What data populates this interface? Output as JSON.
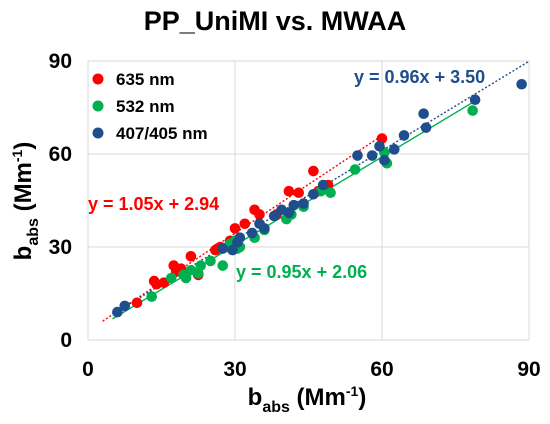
{
  "chart_data": {
    "type": "scatter",
    "title": "PP_UniMI vs. MWAA",
    "xlabel": {
      "main": "b",
      "sub": "abs",
      "unit_open": " (Mm",
      "unit_sup": "-1",
      "unit_close": ")"
    },
    "ylabel": {
      "main": "b",
      "sub": "abs",
      "unit_open": " (Mm",
      "unit_sup": "-1",
      "unit_close": ")"
    },
    "xlim": [
      0,
      90
    ],
    "ylim": [
      0,
      90
    ],
    "xticks": [
      0,
      30,
      60,
      90
    ],
    "yticks": [
      0,
      30,
      60,
      90
    ],
    "tick_labels_x": [
      "0",
      "30",
      "60",
      "90"
    ],
    "tick_labels_y": [
      "0",
      "30",
      "60",
      "90"
    ],
    "grid": true,
    "legend_position": "top-left",
    "series": [
      {
        "name": "635 nm",
        "color": "#ff0000",
        "points": [
          [
            10,
            12
          ],
          [
            13.5,
            19
          ],
          [
            14,
            18
          ],
          [
            15.5,
            18.5
          ],
          [
            17.5,
            24
          ],
          [
            18,
            22
          ],
          [
            19,
            23
          ],
          [
            21,
            27
          ],
          [
            22.5,
            21
          ],
          [
            26,
            29
          ],
          [
            26.5,
            29.5
          ],
          [
            27,
            30
          ],
          [
            29,
            32
          ],
          [
            30,
            36
          ],
          [
            32,
            37.5
          ],
          [
            34,
            42
          ],
          [
            35,
            40.5
          ],
          [
            38.5,
            40.5
          ],
          [
            41,
            48
          ],
          [
            43,
            47.5
          ],
          [
            46,
            54.5
          ],
          [
            47,
            48
          ],
          [
            49,
            50
          ],
          [
            60,
            65
          ]
        ],
        "fit": {
          "slope": 1.05,
          "intercept": 2.94,
          "xrange": [
            3,
            60
          ]
        },
        "equation": "y = 1.05x + 2.94"
      },
      {
        "name": "532 nm",
        "color": "#00b050",
        "points": [
          [
            13,
            14
          ],
          [
            17,
            20
          ],
          [
            19.5,
            21
          ],
          [
            20,
            20
          ],
          [
            21,
            22.5
          ],
          [
            22.5,
            21.5
          ],
          [
            23,
            24
          ],
          [
            25,
            25.5
          ],
          [
            27.5,
            24
          ],
          [
            28.5,
            30
          ],
          [
            29,
            31
          ],
          [
            30,
            32
          ],
          [
            30.5,
            29.5
          ],
          [
            31,
            30
          ],
          [
            34,
            33
          ],
          [
            36,
            35.5
          ],
          [
            40.5,
            39
          ],
          [
            41.5,
            40.5
          ],
          [
            44,
            43
          ],
          [
            47.5,
            48
          ],
          [
            49.5,
            47.5
          ],
          [
            54.5,
            55
          ],
          [
            60.5,
            60.5
          ],
          [
            61,
            57
          ],
          [
            78.5,
            74
          ]
        ],
        "fit": {
          "slope": 0.95,
          "intercept": 2.06,
          "xrange": [
            5,
            78.5
          ]
        },
        "equation": "y = 0.95x + 2.06"
      },
      {
        "name": "407/405 nm",
        "color": "#1f4e8c",
        "points": [
          [
            6,
            9
          ],
          [
            7.5,
            11
          ],
          [
            27.5,
            29.5
          ],
          [
            29.5,
            29
          ],
          [
            30.5,
            31.5
          ],
          [
            31,
            33
          ],
          [
            33.5,
            34.5
          ],
          [
            35,
            37.5
          ],
          [
            36,
            36
          ],
          [
            38,
            40
          ],
          [
            39.5,
            42
          ],
          [
            41,
            41
          ],
          [
            42,
            43.5
          ],
          [
            44,
            44
          ],
          [
            46,
            47
          ],
          [
            48,
            50
          ],
          [
            55,
            59.5
          ],
          [
            58,
            59.5
          ],
          [
            59.5,
            62.5
          ],
          [
            60.5,
            58
          ],
          [
            62.5,
            61.5
          ],
          [
            64.5,
            66
          ],
          [
            68.5,
            73
          ],
          [
            69,
            68.5
          ],
          [
            79,
            77.5
          ],
          [
            88.5,
            82.5
          ]
        ],
        "fit": {
          "slope": 0.96,
          "intercept": 3.5,
          "xrange": [
            5,
            90
          ]
        },
        "equation": "y = 0.96x + 3.50"
      }
    ]
  }
}
